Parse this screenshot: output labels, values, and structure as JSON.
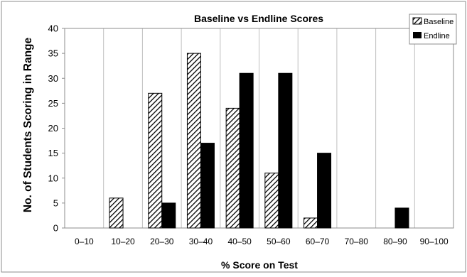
{
  "chart_data": {
    "type": "bar",
    "title": "Baseline vs Endline Scores",
    "xlabel": "% Score on Test",
    "ylabel": "No. of Students Scoring in Range",
    "categories": [
      "0–10",
      "10–20",
      "20–30",
      "30–40",
      "40–50",
      "50–60",
      "60–70",
      "70–80",
      "80–90",
      "90–100"
    ],
    "series": [
      {
        "name": "Baseline",
        "values": [
          0,
          6,
          27,
          35,
          24,
          11,
          2,
          0,
          0,
          0
        ],
        "fill": "hatch"
      },
      {
        "name": "Endline",
        "values": [
          0,
          0,
          5,
          17,
          31,
          31,
          15,
          0,
          4,
          0
        ],
        "fill": "#000000"
      }
    ],
    "ylim": [
      0,
      40
    ],
    "yticks": [
      0,
      5,
      10,
      15,
      20,
      25,
      30,
      35,
      40
    ],
    "grid": "vertical category dividers",
    "legend_position": "top-right"
  }
}
